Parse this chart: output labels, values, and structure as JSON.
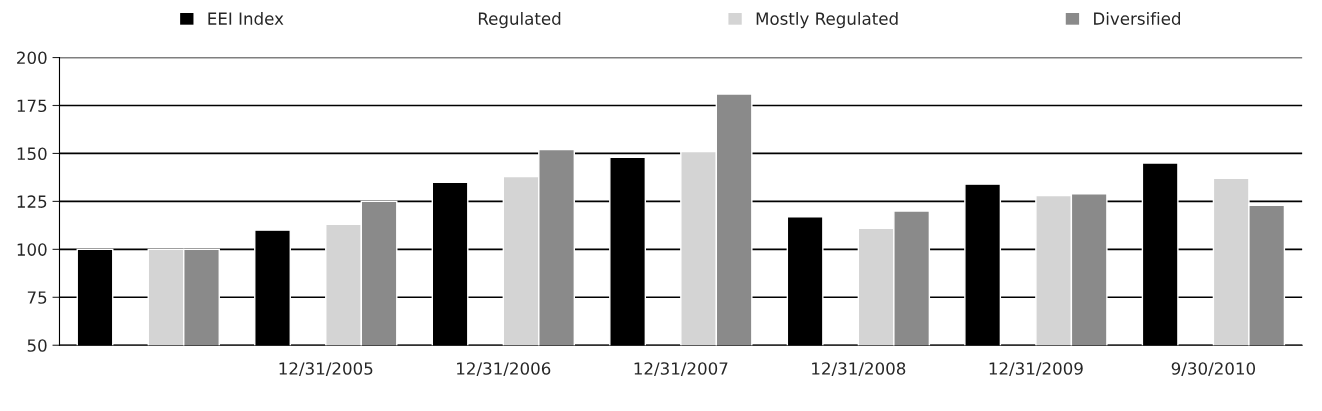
{
  "chart_data": {
    "type": "bar",
    "categories": [
      null,
      "12/31/2005",
      "12/31/2006",
      "12/31/2007",
      "12/31/2008",
      "12/31/2009",
      "9/30/2010"
    ],
    "series": [
      {
        "name": "EEI Index",
        "color": "#000000",
        "values": [
          100,
          110,
          135,
          148,
          117,
          134,
          145
        ]
      },
      {
        "name": "Regulated",
        "values": [
          null,
          null,
          null,
          null,
          null,
          null,
          null
        ]
      },
      {
        "name": "Mostly Regulated",
        "color": "#d4d4d4",
        "values": [
          100,
          113,
          138,
          151,
          111,
          128,
          137
        ]
      },
      {
        "name": "Diversified",
        "color": "#8a8a8a",
        "values": [
          100,
          125,
          152,
          181,
          120,
          129,
          123
        ]
      }
    ],
    "ylim": [
      50,
      200
    ],
    "yticks": [
      50,
      75,
      100,
      125,
      150,
      175,
      200
    ],
    "grid": "y",
    "legend": "top"
  }
}
